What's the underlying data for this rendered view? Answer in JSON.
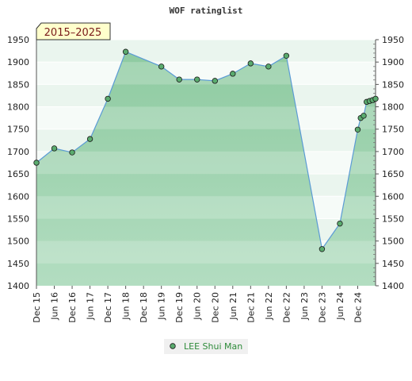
{
  "chart_data": {
    "type": "area",
    "title": "WOF ratinglist",
    "badge": "2015–2025",
    "ylim": [
      1400,
      1950
    ],
    "yticks": [
      1400,
      1450,
      1500,
      1550,
      1600,
      1650,
      1700,
      1750,
      1800,
      1850,
      1900,
      1950
    ],
    "ytick_labels": [
      "1400",
      "1450",
      "1500",
      "1550",
      "1600",
      "1650",
      "1700",
      "1750",
      "1800",
      "1850",
      "1900",
      "1950"
    ],
    "xlim": [
      "2015-12",
      "2025-06"
    ],
    "xticks": [
      "2015-12",
      "2016-06",
      "2016-12",
      "2017-06",
      "2017-12",
      "2018-06",
      "2018-12",
      "2019-06",
      "2019-12",
      "2020-06",
      "2020-12",
      "2021-06",
      "2021-12",
      "2022-06",
      "2022-12",
      "2023-06",
      "2023-12",
      "2024-06",
      "2024-12"
    ],
    "xtick_labels": [
      "Dec 15",
      "Jun 16",
      "Dec 16",
      "Jun 17",
      "Dec 17",
      "Jun 18",
      "Dec 18",
      "Jun 19",
      "Dec 19",
      "Jun 20",
      "Dec 20",
      "Jun 21",
      "Dec 21",
      "Jun 22",
      "Dec 22",
      "Jun 23",
      "Dec 23",
      "Jun 24",
      "Dec 24"
    ],
    "series": [
      {
        "name": "LEE Shui Man",
        "color": "#5aab6e",
        "line_color": "#5b9bd5",
        "points": [
          {
            "x": "2015-12",
            "y": 1675
          },
          {
            "x": "2016-06",
            "y": 1707
          },
          {
            "x": "2016-12",
            "y": 1698
          },
          {
            "x": "2017-06",
            "y": 1728
          },
          {
            "x": "2017-12",
            "y": 1818
          },
          {
            "x": "2018-06",
            "y": 1923
          },
          {
            "x": "2019-06",
            "y": 1890
          },
          {
            "x": "2019-12",
            "y": 1861
          },
          {
            "x": "2020-06",
            "y": 1861
          },
          {
            "x": "2020-12",
            "y": 1858
          },
          {
            "x": "2021-06",
            "y": 1874
          },
          {
            "x": "2021-12",
            "y": 1897
          },
          {
            "x": "2022-06",
            "y": 1890
          },
          {
            "x": "2022-12",
            "y": 1914
          },
          {
            "x": "2023-12",
            "y": 1482
          },
          {
            "x": "2024-06",
            "y": 1539
          },
          {
            "x": "2024-12",
            "y": 1749
          },
          {
            "x": "2025-01",
            "y": 1775
          },
          {
            "x": "2025-02",
            "y": 1780
          },
          {
            "x": "2025-03",
            "y": 1811
          },
          {
            "x": "2025-04",
            "y": 1813
          },
          {
            "x": "2025-05",
            "y": 1815
          },
          {
            "x": "2025-06",
            "y": 1818
          }
        ]
      }
    ],
    "grid": true,
    "legend_position": "bottom-center"
  }
}
